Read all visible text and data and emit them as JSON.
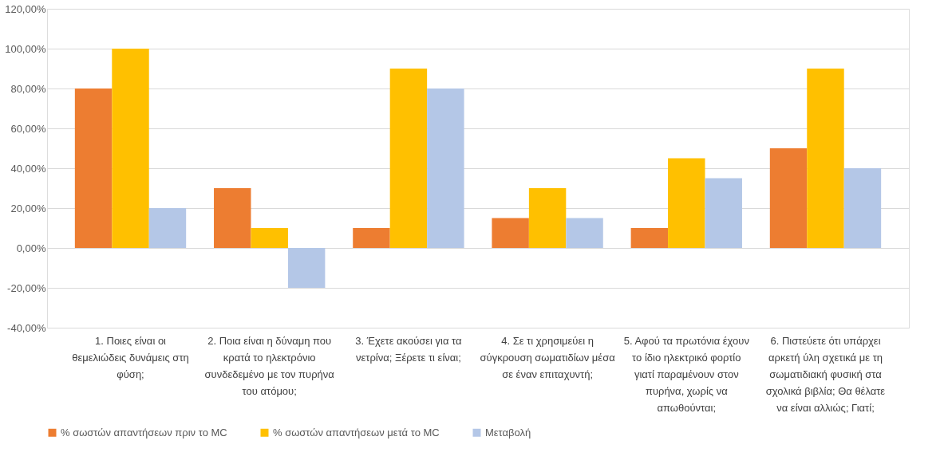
{
  "chart_data": {
    "type": "bar",
    "categories": [
      "1. Ποιες είναι οι θεμελιώδεις δυνάμεις στη φύση;",
      "2. Ποια είναι η δύναμη που κρατά το ηλεκτρόνιο συνδεδεμένο με τον πυρήνα του ατόμου;",
      "3. Έχετε ακούσει για τα νετρίνα; Ξέρετε τι είναι;",
      "4. Σε τι χρησιμεύει η σύγκρουση σωματιδίων μέσα σε έναν επιταχυντή;",
      "5. Αφού τα πρωτόνια έχουν το ίδιο ηλεκτρικό φορτίο γιατί παραμένουν στον πυρήνα, χωρίς να απωθούνται;",
      "6. Πιστεύετε ότι υπάρχει αρκετή ύλη σχετικά με τη σωματιδιακή φυσική στα σχολικά βιβλία; Θα θέλατε να είναι αλλιώς; Γιατί;"
    ],
    "series": [
      {
        "name": "% σωστών απαντήσεων πριν το MC",
        "color": "#ed7d31",
        "values": [
          80,
          30,
          10,
          15,
          10,
          50
        ]
      },
      {
        "name": "% σωστών απαντήσεων μετά το MC",
        "color": "#ffc000",
        "values": [
          100,
          10,
          90,
          30,
          45,
          90
        ]
      },
      {
        "name": "Μεταβολή",
        "color": "#b4c7e7",
        "values": [
          20,
          -20,
          80,
          15,
          35,
          40
        ]
      }
    ],
    "ylim": [
      -40,
      120
    ],
    "yticks": [
      {
        "value": -40,
        "label": "-40,00%"
      },
      {
        "value": -20,
        "label": "-20,00%"
      },
      {
        "value": 0,
        "label": "0,00%"
      },
      {
        "value": 20,
        "label": "20,00%"
      },
      {
        "value": 40,
        "label": "40,00%"
      },
      {
        "value": 60,
        "label": "60,00%"
      },
      {
        "value": 80,
        "label": "80,00%"
      },
      {
        "value": 100,
        "label": "100,00%"
      },
      {
        "value": 120,
        "label": "120,00%"
      }
    ],
    "grid": "y",
    "legend": "bottom"
  }
}
